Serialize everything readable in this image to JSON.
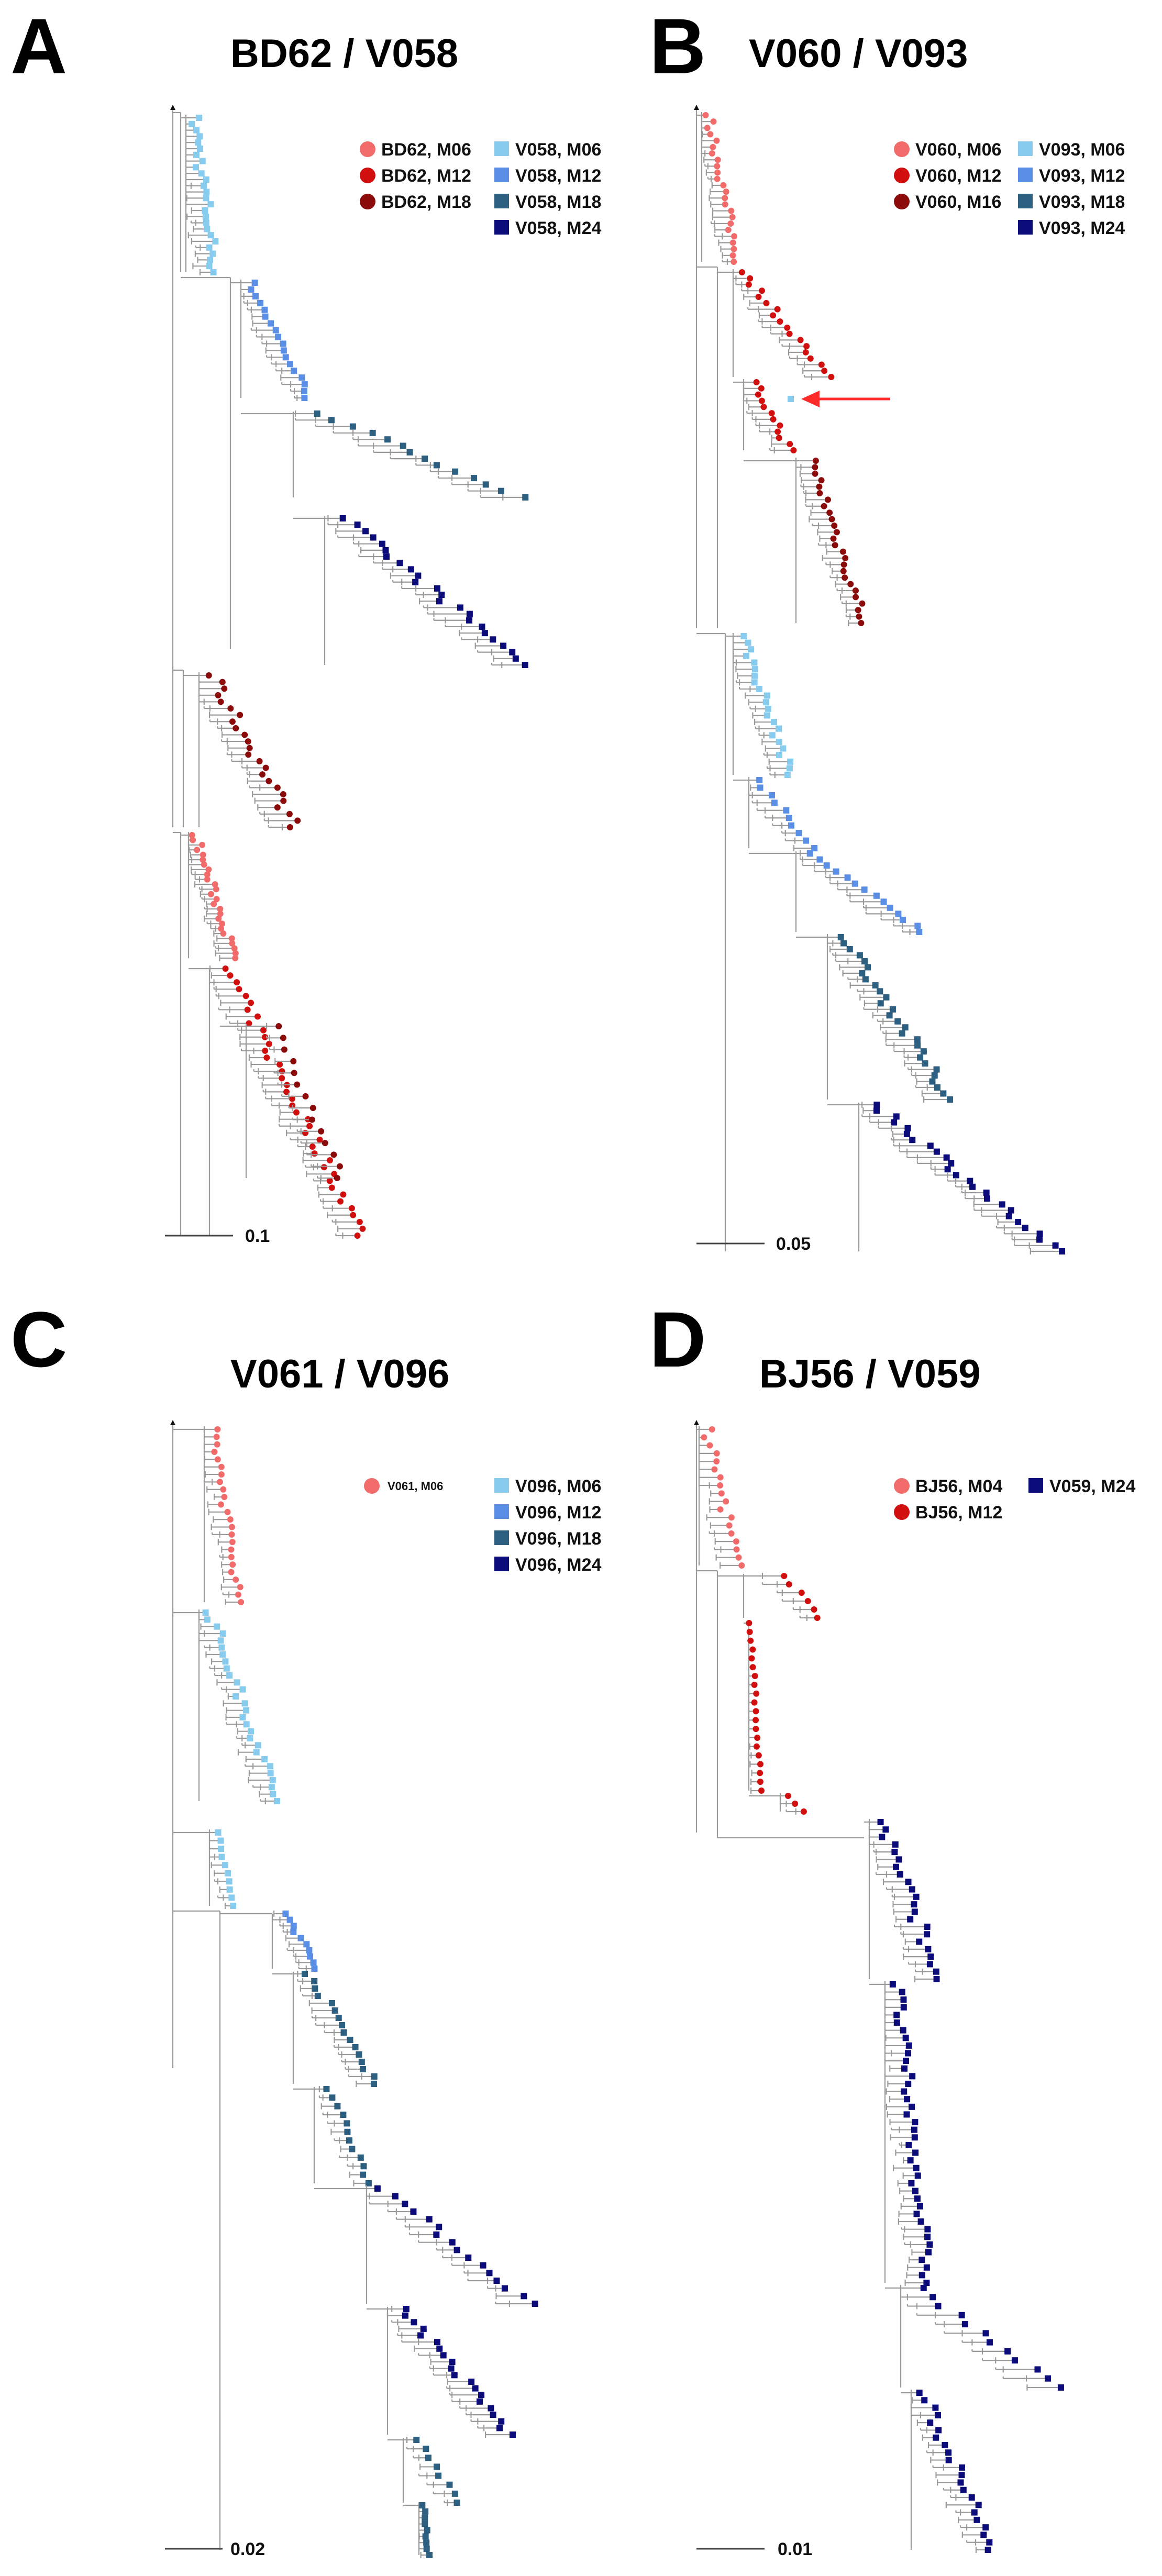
{
  "colors": {
    "circle_m06": "#f26b6b",
    "circle_m12": "#d10f0f",
    "circle_m18": "#8b0a0a",
    "square_m06": "#87ccee",
    "square_m12": "#5b8fe6",
    "square_m18": "#2c5f80",
    "square_m24": "#0b0b7a",
    "arrow": "#ff2a2a"
  },
  "panels": [
    {
      "letter": "A",
      "title": "BD62 / V058",
      "scale_label": "0.1",
      "legend": [
        {
          "label": "BD62, M06",
          "shape": "circle",
          "color": "#f26b6b"
        },
        {
          "label": "BD62, M12",
          "shape": "circle",
          "color": "#d10f0f"
        },
        {
          "label": "BD62, M18",
          "shape": "circle",
          "color": "#8b0a0a"
        },
        {
          "label": "V058, M06",
          "shape": "square",
          "color": "#87ccee"
        },
        {
          "label": "V058, M12",
          "shape": "square",
          "color": "#5b8fe6"
        },
        {
          "label": "V058, M18",
          "shape": "square",
          "color": "#2c5f80"
        },
        {
          "label": "V058, M24",
          "shape": "square",
          "color": "#0b0b7a"
        }
      ]
    },
    {
      "letter": "B",
      "title": "V060 / V093",
      "scale_label": "0.05",
      "legend": [
        {
          "label": "V060, M06",
          "shape": "circle",
          "color": "#f26b6b"
        },
        {
          "label": "V060, M12",
          "shape": "circle",
          "color": "#d10f0f"
        },
        {
          "label": "V060, M16",
          "shape": "circle",
          "color": "#8b0a0a"
        },
        {
          "label": "V093, M06",
          "shape": "square",
          "color": "#87ccee"
        },
        {
          "label": "V093, M12",
          "shape": "square",
          "color": "#5b8fe6"
        },
        {
          "label": "V093, M18",
          "shape": "square",
          "color": "#2c5f80"
        },
        {
          "label": "V093, M24",
          "shape": "square",
          "color": "#0b0b7a"
        }
      ]
    },
    {
      "letter": "C",
      "title": "V061 / V096",
      "scale_label": "0.02",
      "legend": [
        {
          "label": "V061, M06",
          "shape": "circle",
          "color": "#f26b6b"
        },
        {
          "label": "V096, M06",
          "shape": "square",
          "color": "#87ccee"
        },
        {
          "label": "V096, M12",
          "shape": "square",
          "color": "#5b8fe6"
        },
        {
          "label": "V096, M18",
          "shape": "square",
          "color": "#2c5f80"
        },
        {
          "label": "V096, M24",
          "shape": "square",
          "color": "#0b0b7a"
        }
      ]
    },
    {
      "letter": "D",
      "title": "BJ56 / V059",
      "scale_label": "0.01",
      "legend": [
        {
          "label": "BJ56, M04",
          "shape": "circle",
          "color": "#f26b6b"
        },
        {
          "label": "BJ56, M12",
          "shape": "circle",
          "color": "#d10f0f"
        },
        {
          "label": "V059, M24",
          "shape": "square",
          "color": "#0b0b7a"
        }
      ]
    }
  ]
}
